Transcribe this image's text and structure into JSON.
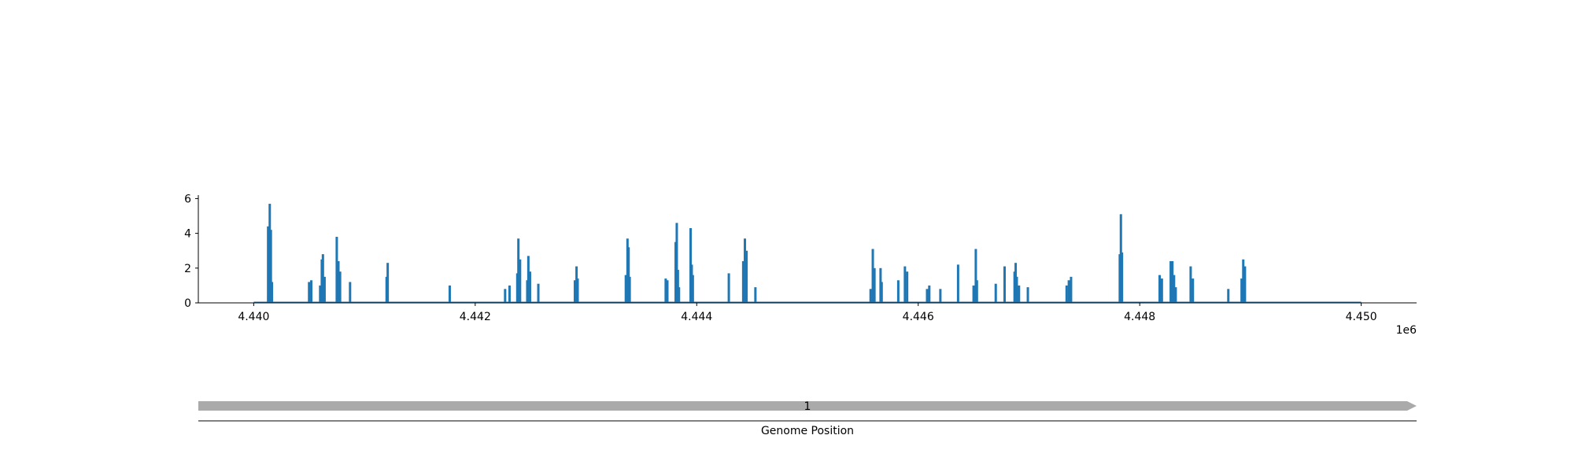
{
  "chart_data": [
    {
      "type": "bar",
      "x_offset_label": "1e6",
      "x_ticks": [
        4440000,
        4442000,
        4444000,
        4446000,
        4448000,
        4450000
      ],
      "x_tick_labels": [
        "4.440",
        "4.442",
        "4.444",
        "4.446",
        "4.448",
        "4.450"
      ],
      "y_ticks": [
        0,
        2,
        4,
        6
      ],
      "y_tick_labels": [
        "0",
        "2",
        "4",
        "6"
      ],
      "xlim": [
        4439500,
        4450500
      ],
      "ylim": [
        0,
        6.2
      ],
      "grid": false,
      "color": "#1f77b4",
      "baseline": [
        4440000,
        4450000
      ],
      "x": [
        4440130,
        4440145,
        4440155,
        4440165,
        4440500,
        4440520,
        4440600,
        4440615,
        4440625,
        4440640,
        4440750,
        4440765,
        4440780,
        4440870,
        4441200,
        4441210,
        4441770,
        4442270,
        4442310,
        4442380,
        4442390,
        4442405,
        4442470,
        4442480,
        4442495,
        4442570,
        4442900,
        4442915,
        4442925,
        4443360,
        4443375,
        4443385,
        4443395,
        4443720,
        4443735,
        4443810,
        4443820,
        4443830,
        4443840,
        4443945,
        4443955,
        4443965,
        4444290,
        4444420,
        4444435,
        4444450,
        4444530,
        4445570,
        4445590,
        4445605,
        4445660,
        4445670,
        4445820,
        4445880,
        4445900,
        4446080,
        4446100,
        4446200,
        4446360,
        4446500,
        4446520,
        4446530,
        4446700,
        4446780,
        4446870,
        4446880,
        4446890,
        4446910,
        4446990,
        4447340,
        4447360,
        4447380,
        4447820,
        4447830,
        4447840,
        4448180,
        4448200,
        4448280,
        4448295,
        4448310,
        4448325,
        4448460,
        4448480,
        4448800,
        4448920,
        4448935,
        4448950
      ],
      "values": [
        4.4,
        5.7,
        4.2,
        1.2,
        1.2,
        1.3,
        1.0,
        2.5,
        2.8,
        1.5,
        3.8,
        2.4,
        1.8,
        1.2,
        1.5,
        2.3,
        1.0,
        0.8,
        1.0,
        1.7,
        3.7,
        2.5,
        1.3,
        2.7,
        1.8,
        1.1,
        1.3,
        2.1,
        1.4,
        1.6,
        3.7,
        3.2,
        1.5,
        1.4,
        1.3,
        3.5,
        4.6,
        1.9,
        0.9,
        4.3,
        2.2,
        1.6,
        1.7,
        2.4,
        3.7,
        3.0,
        0.9,
        0.8,
        3.1,
        2.0,
        2.0,
        1.2,
        1.3,
        2.1,
        1.8,
        0.8,
        1.0,
        0.8,
        2.2,
        1.0,
        3.1,
        1.3,
        1.1,
        2.1,
        1.8,
        2.3,
        1.5,
        1.0,
        0.9,
        1.0,
        1.3,
        1.5,
        2.8,
        5.1,
        2.9,
        1.6,
        1.4,
        2.4,
        2.4,
        1.6,
        0.9,
        2.1,
        1.4,
        0.8,
        1.4,
        2.5,
        2.1
      ]
    },
    {
      "type": "bar",
      "xlabel": "Genome Position",
      "segments": [
        {
          "label": "1",
          "start": 4439500,
          "end": 4450500,
          "color": "#aaaaaa"
        }
      ]
    }
  ]
}
